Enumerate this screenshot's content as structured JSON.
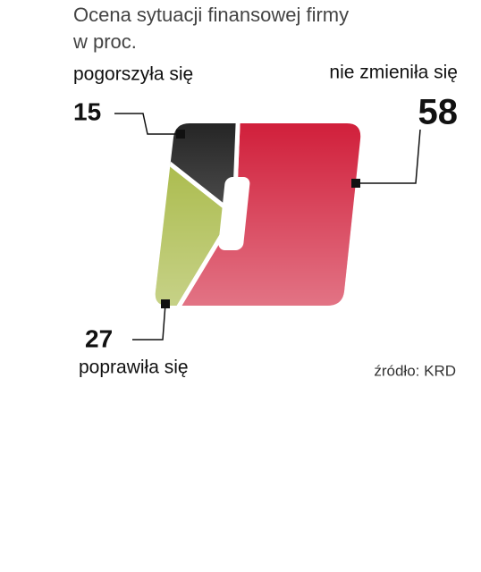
{
  "chart_data": {
    "type": "pie",
    "title": "Ocena sytuacji finansowej firmy",
    "subtitle": "w proc.",
    "categories": [
      "nie zmieniła się",
      "poprawiła się",
      "pogorszyła się"
    ],
    "values": [
      58,
      27,
      15
    ],
    "colors": [
      "#d01c38",
      "#a3b53c",
      "#222222"
    ],
    "source": "źródło: KRD"
  }
}
